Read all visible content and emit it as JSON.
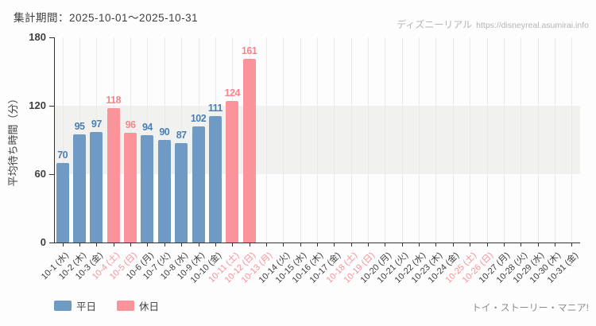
{
  "header": {
    "period": "集計期間：2025-10-01～2025-10-31",
    "watermark_site": "ディズニーリアル",
    "watermark_url": "https://disneyreal.asumirai.info"
  },
  "legend": {
    "weekday": "平日",
    "holiday": "休日"
  },
  "footer": {
    "attraction": "トイ・ストーリー・マニア!"
  },
  "colors": {
    "weekday_bar": "#6e9ac4",
    "weekday_value_label": "#4a7fb5",
    "holiday_bar": "#fb939a",
    "holiday_value_label": "#f9848d",
    "holiday_axis_label": "#f5929a",
    "weekday_axis_label": "#3d3d3d",
    "shaded_band": "#f1f2f0",
    "gridline": "#e9ebe8",
    "axis": "#333333"
  },
  "chart_data": {
    "type": "bar",
    "title": "",
    "xlabel": "",
    "ylabel": "平均待ち時間（分）",
    "ylim": [
      0,
      180
    ],
    "yticks": [
      0,
      60,
      120,
      180
    ],
    "shaded_band_y": [
      60,
      120
    ],
    "grid": "vertical",
    "legend_position": "bottom-left",
    "categories": [
      "10-1 (水)",
      "10-2 (木)",
      "10-3 (金)",
      "10-4 (土)",
      "10-5 (日)",
      "10-6 (月)",
      "10-7 (火)",
      "10-8 (水)",
      "10-9 (木)",
      "10-10 (金)",
      "10-11 (土)",
      "10-12 (日)",
      "10-13 (月)",
      "10-14 (火)",
      "10-15 (水)",
      "10-16 (木)",
      "10-17 (金)",
      "10-18 (土)",
      "10-19 (日)",
      "10-20 (月)",
      "10-21 (火)",
      "10-22 (水)",
      "10-23 (木)",
      "10-24 (金)",
      "10-25 (土)",
      "10-26 (日)",
      "10-27 (月)",
      "10-28 (火)",
      "10-29 (水)",
      "10-30 (木)",
      "10-31 (金)"
    ],
    "holiday_flags": [
      false,
      false,
      false,
      true,
      true,
      false,
      false,
      false,
      false,
      false,
      true,
      true,
      true,
      false,
      false,
      false,
      false,
      true,
      true,
      false,
      false,
      false,
      false,
      false,
      true,
      true,
      false,
      false,
      false,
      false,
      false
    ],
    "values": [
      70,
      95,
      97,
      118,
      96,
      94,
      90,
      87,
      102,
      111,
      124,
      161,
      null,
      null,
      null,
      null,
      null,
      null,
      null,
      null,
      null,
      null,
      null,
      null,
      null,
      null,
      null,
      null,
      null,
      null,
      null
    ],
    "series": [
      {
        "name": "平日",
        "type_key": "weekday"
      },
      {
        "name": "休日",
        "type_key": "holiday"
      }
    ]
  }
}
